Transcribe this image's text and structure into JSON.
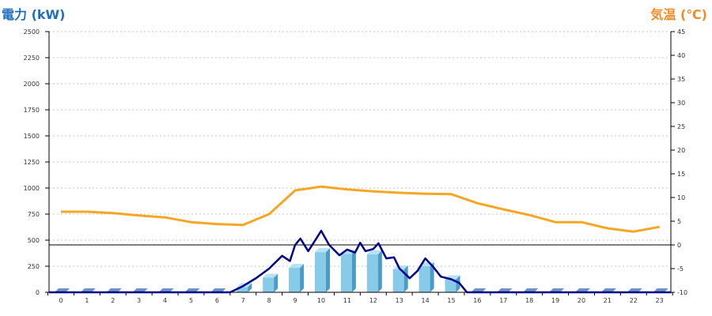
{
  "colors": {
    "left_title": "#1e6fc0",
    "right_title": "#f08c28",
    "bar_front": "#87cbe8",
    "bar_side": "#4a9cc6",
    "bar_top": "#b6e2f4",
    "bar_base": "#6f93c2",
    "power_line": "#000088",
    "temperature_line": "#f5a623",
    "grid": "#c4c4c4",
    "axis": "#000000"
  },
  "chart_data": {
    "type": "bar",
    "categories": [
      "0",
      "1",
      "2",
      "3",
      "4",
      "5",
      "6",
      "7",
      "8",
      "9",
      "10",
      "11",
      "12",
      "13",
      "14",
      "15",
      "16",
      "17",
      "18",
      "19",
      "20",
      "21",
      "22",
      "23"
    ],
    "y_left": {
      "label": "電力 (kW)",
      "range": [
        0,
        2500
      ],
      "ticks": [
        0,
        250,
        500,
        750,
        1000,
        1250,
        1500,
        1750,
        2000,
        2250,
        2500
      ]
    },
    "y_right": {
      "label": "気温 (℃)",
      "range": [
        -10,
        45
      ],
      "ticks": [
        -10,
        -5,
        0,
        5,
        10,
        15,
        20,
        25,
        30,
        35,
        40,
        45
      ]
    },
    "grid": true,
    "series": [
      {
        "type": "bar",
        "axis": "left",
        "values": [
          0,
          0,
          0,
          0,
          0,
          0,
          0,
          50,
          140,
          235,
          385,
          370,
          365,
          220,
          250,
          125,
          0,
          0,
          0,
          0,
          0,
          0,
          0,
          0
        ]
      },
      {
        "type": "line",
        "axis": "left",
        "points": [
          [
            -0.45,
            0
          ],
          [
            6.5,
            0
          ],
          [
            7,
            60
          ],
          [
            7.5,
            136
          ],
          [
            8,
            227
          ],
          [
            8.5,
            350
          ],
          [
            8.8,
            300
          ],
          [
            9,
            455
          ],
          [
            9.2,
            515
          ],
          [
            9.5,
            395
          ],
          [
            9.8,
            510
          ],
          [
            10,
            590
          ],
          [
            10.3,
            455
          ],
          [
            10.7,
            355
          ],
          [
            11,
            410
          ],
          [
            11.3,
            380
          ],
          [
            11.5,
            475
          ],
          [
            11.7,
            395
          ],
          [
            12,
            415
          ],
          [
            12.2,
            470
          ],
          [
            12.5,
            325
          ],
          [
            12.8,
            335
          ],
          [
            13,
            230
          ],
          [
            13.4,
            135
          ],
          [
            13.7,
            205
          ],
          [
            14,
            325
          ],
          [
            14.3,
            245
          ],
          [
            14.6,
            150
          ],
          [
            15,
            125
          ],
          [
            15.3,
            90
          ],
          [
            15.6,
            0
          ],
          [
            23.45,
            0
          ]
        ]
      },
      {
        "type": "line",
        "axis": "right",
        "values": [
          7.0,
          7.0,
          6.7,
          6.2,
          5.8,
          4.8,
          4.4,
          4.2,
          6.5,
          11.5,
          12.3,
          11.7,
          11.3,
          11.0,
          10.8,
          10.7,
          8.8,
          7.5,
          6.3,
          4.8,
          4.8,
          3.5,
          2.8,
          3.8
        ]
      }
    ]
  }
}
